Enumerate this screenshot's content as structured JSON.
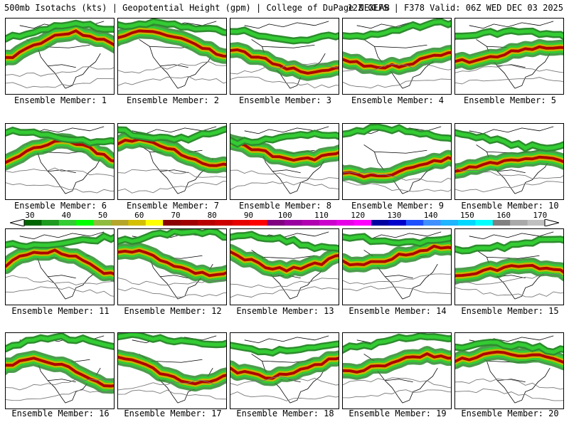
{
  "header": {
    "title": "500mb Isotachs (kts) | Geopotential Height (gpm) | College of DuPage NEXLAB",
    "run": "12Z GEFS | F378 Valid: 06Z WED DEC 03 2025"
  },
  "colorbar": {
    "labels": [
      "30",
      "40",
      "50",
      "60",
      "70",
      "80",
      "90",
      "100",
      "110",
      "120",
      "130",
      "140",
      "150",
      "160",
      "170"
    ],
    "colors": [
      "#006400",
      "#1e9b1e",
      "#33cc33",
      "#00ff00",
      "#8fbc3f",
      "#b5a62b",
      "#d4c000",
      "#ffff00",
      "#8b0000",
      "#a00000",
      "#b80000",
      "#cc0000",
      "#e60000",
      "#ff0000",
      "#800080",
      "#9900a0",
      "#b000b0",
      "#cc00cc",
      "#e600e6",
      "#ff00ff",
      "#0000a0",
      "#0000cd",
      "#1e50ff",
      "#3f8fff",
      "#1eb4ff",
      "#00d8ff",
      "#00ffff",
      "#808080",
      "#a9a9a9",
      "#c0c0c0"
    ]
  },
  "members": [
    {
      "label": "Ensemble Member: 1"
    },
    {
      "label": "Ensemble Member: 2"
    },
    {
      "label": "Ensemble Member: 3"
    },
    {
      "label": "Ensemble Member: 4"
    },
    {
      "label": "Ensemble Member: 5"
    },
    {
      "label": "Ensemble Member: 6"
    },
    {
      "label": "Ensemble Member: 7"
    },
    {
      "label": "Ensemble Member: 8"
    },
    {
      "label": "Ensemble Member: 9"
    },
    {
      "label": "Ensemble Member: 10"
    },
    {
      "label": "Ensemble Member: 11"
    },
    {
      "label": "Ensemble Member: 12"
    },
    {
      "label": "Ensemble Member: 13"
    },
    {
      "label": "Ensemble Member: 14"
    },
    {
      "label": "Ensemble Member: 15"
    },
    {
      "label": "Ensemble Member: 16"
    },
    {
      "label": "Ensemble Member: 17"
    },
    {
      "label": "Ensemble Member: 18"
    },
    {
      "label": "Ensemble Member: 19"
    },
    {
      "label": "Ensemble Member: 20"
    }
  ]
}
